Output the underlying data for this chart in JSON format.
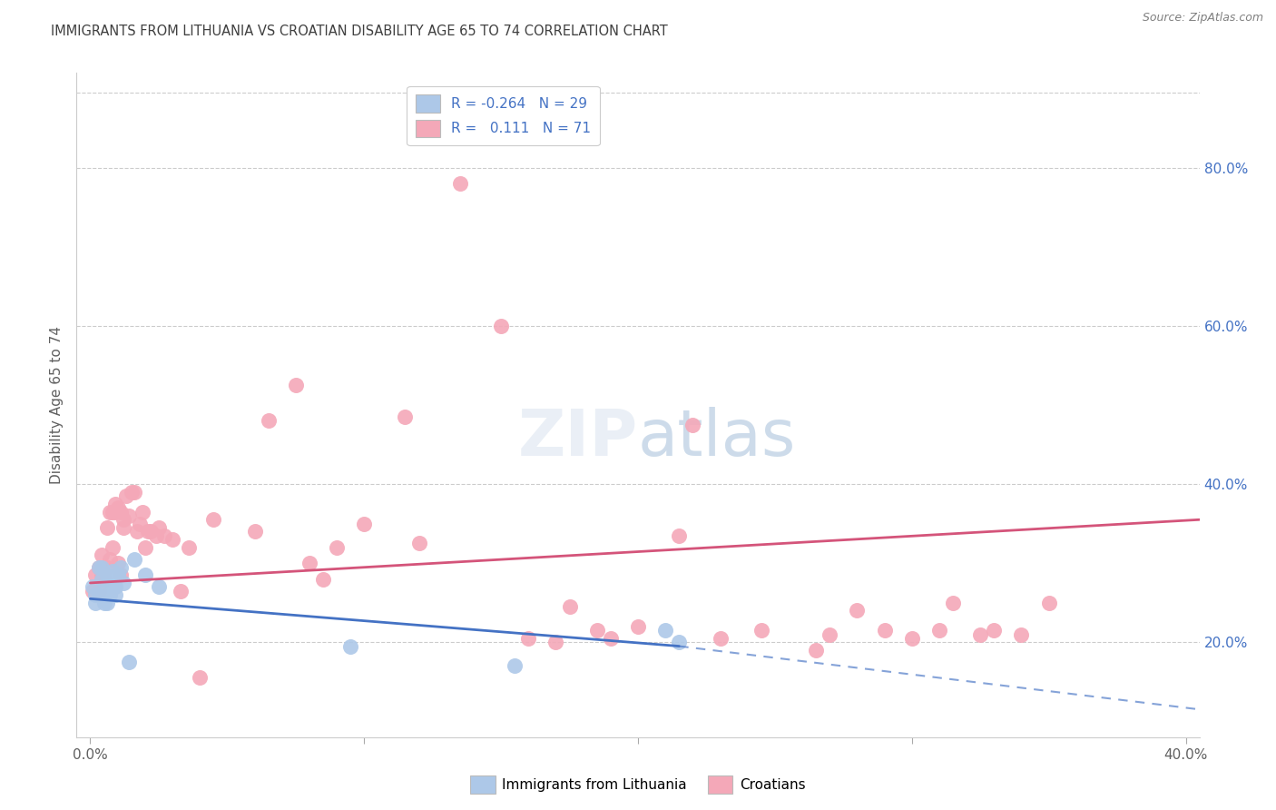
{
  "title": "IMMIGRANTS FROM LITHUANIA VS CROATIAN DISABILITY AGE 65 TO 74 CORRELATION CHART",
  "source": "Source: ZipAtlas.com",
  "ylabel": "Disability Age 65 to 74",
  "xlim": [
    -0.005,
    0.405
  ],
  "ylim": [
    0.08,
    0.92
  ],
  "xtick_positions": [
    0.0,
    0.1,
    0.2,
    0.3,
    0.4
  ],
  "xtick_labels": [
    "0.0%",
    "",
    "",
    "",
    "40.0%"
  ],
  "yticks_right": [
    0.2,
    0.4,
    0.6,
    0.8
  ],
  "ytick_labels_right": [
    "20.0%",
    "40.0%",
    "60.0%",
    "80.0%"
  ],
  "legend_R_blue": "-0.264",
  "legend_N_blue": "29",
  "legend_R_pink": "0.111",
  "legend_N_pink": "71",
  "blue_color": "#adc8e8",
  "pink_color": "#f4a8b8",
  "blue_line_color": "#4472c4",
  "pink_line_color": "#d4547a",
  "right_axis_color": "#4472c4",
  "background_color": "#ffffff",
  "grid_color": "#cccccc",
  "title_color": "#404040",
  "blue_line_x0": 0.0,
  "blue_line_x_solid_end": 0.215,
  "blue_line_x_dash_end": 0.405,
  "blue_line_y0": 0.255,
  "blue_line_y_solid_end": 0.195,
  "blue_line_y_dash_end": 0.115,
  "pink_line_x0": 0.0,
  "pink_line_x_end": 0.405,
  "pink_line_y0": 0.275,
  "pink_line_y_end": 0.355,
  "blue_scatter_x": [
    0.001,
    0.002,
    0.002,
    0.003,
    0.003,
    0.004,
    0.004,
    0.005,
    0.005,
    0.006,
    0.006,
    0.007,
    0.007,
    0.008,
    0.008,
    0.009,
    0.009,
    0.01,
    0.01,
    0.011,
    0.012,
    0.014,
    0.016,
    0.02,
    0.025,
    0.095,
    0.155,
    0.21,
    0.215
  ],
  "blue_scatter_y": [
    0.27,
    0.26,
    0.25,
    0.295,
    0.26,
    0.28,
    0.295,
    0.265,
    0.25,
    0.285,
    0.25,
    0.275,
    0.26,
    0.29,
    0.28,
    0.27,
    0.26,
    0.285,
    0.285,
    0.295,
    0.275,
    0.175,
    0.305,
    0.285,
    0.27,
    0.195,
    0.17,
    0.215,
    0.2
  ],
  "pink_scatter_x": [
    0.001,
    0.002,
    0.003,
    0.003,
    0.004,
    0.004,
    0.005,
    0.006,
    0.006,
    0.007,
    0.007,
    0.008,
    0.008,
    0.009,
    0.009,
    0.01,
    0.01,
    0.011,
    0.011,
    0.012,
    0.012,
    0.013,
    0.014,
    0.015,
    0.016,
    0.017,
    0.018,
    0.019,
    0.02,
    0.021,
    0.022,
    0.024,
    0.025,
    0.027,
    0.03,
    0.033,
    0.036,
    0.04,
    0.045,
    0.06,
    0.065,
    0.075,
    0.08,
    0.085,
    0.09,
    0.1,
    0.115,
    0.12,
    0.135,
    0.15,
    0.16,
    0.17,
    0.175,
    0.185,
    0.19,
    0.2,
    0.215,
    0.22,
    0.23,
    0.245,
    0.265,
    0.27,
    0.28,
    0.29,
    0.3,
    0.31,
    0.315,
    0.325,
    0.33,
    0.34,
    0.35
  ],
  "pink_scatter_y": [
    0.265,
    0.285,
    0.295,
    0.265,
    0.285,
    0.31,
    0.28,
    0.295,
    0.345,
    0.305,
    0.365,
    0.32,
    0.365,
    0.365,
    0.375,
    0.3,
    0.37,
    0.285,
    0.365,
    0.345,
    0.355,
    0.385,
    0.36,
    0.39,
    0.39,
    0.34,
    0.35,
    0.365,
    0.32,
    0.34,
    0.34,
    0.335,
    0.345,
    0.335,
    0.33,
    0.265,
    0.32,
    0.155,
    0.355,
    0.34,
    0.48,
    0.525,
    0.3,
    0.28,
    0.32,
    0.35,
    0.485,
    0.325,
    0.78,
    0.6,
    0.205,
    0.2,
    0.245,
    0.215,
    0.205,
    0.22,
    0.335,
    0.475,
    0.205,
    0.215,
    0.19,
    0.21,
    0.24,
    0.215,
    0.205,
    0.215,
    0.25,
    0.21,
    0.215,
    0.21,
    0.25
  ]
}
